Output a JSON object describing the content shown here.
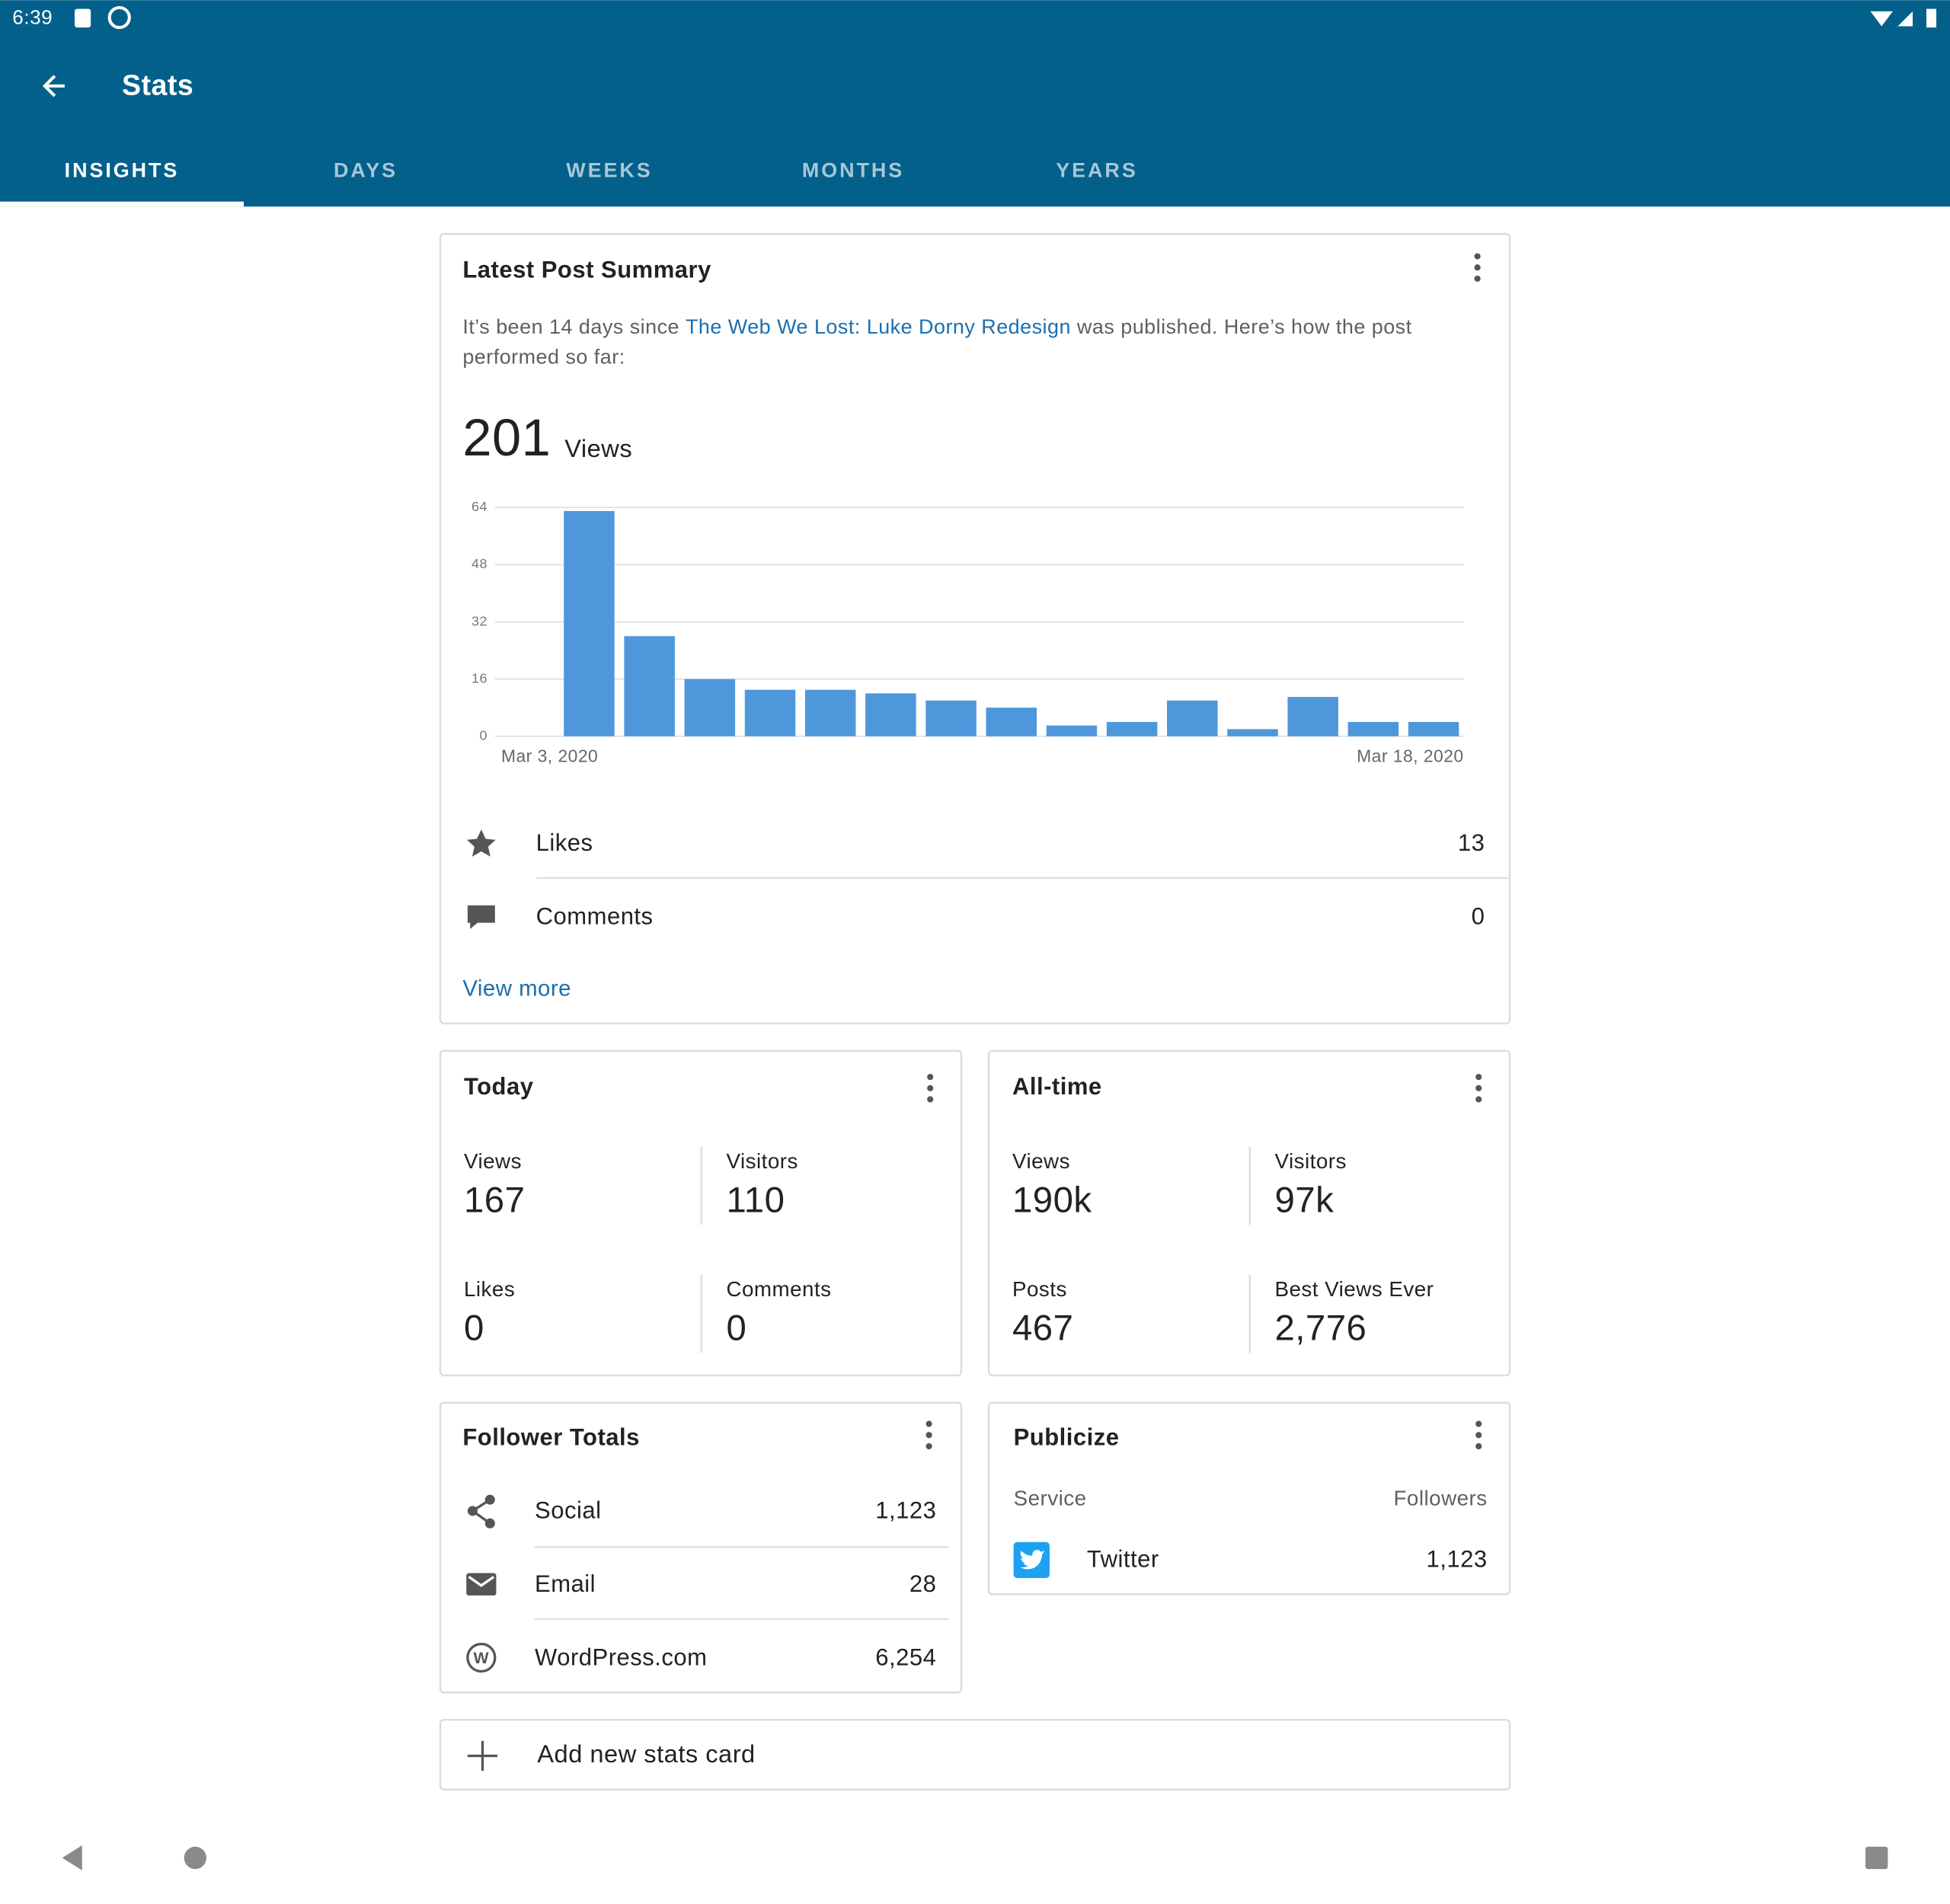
{
  "status_bar": {
    "time": "6:39"
  },
  "app_bar": {
    "title": "Stats"
  },
  "tabs": [
    "INSIGHTS",
    "DAYS",
    "WEEKS",
    "MONTHS",
    "YEARS"
  ],
  "latest_post": {
    "title": "Latest Post Summary",
    "text_before": "It’s been 14 days since ",
    "link": "The Web We Lost: Luke Dorny Redesign",
    "text_after": " was published. Here’s how the post",
    "text_line2": "performed so far:",
    "views": "201",
    "views_label": "Views",
    "rows": [
      {
        "label": "Likes",
        "value": "13"
      },
      {
        "label": "Comments",
        "value": "0"
      }
    ],
    "view_more": "View more"
  },
  "chart_data": {
    "type": "bar",
    "categories": [
      "Mar 3, 2020",
      null,
      null,
      null,
      null,
      null,
      null,
      null,
      null,
      null,
      null,
      null,
      null,
      null,
      null,
      "Mar 18, 2020"
    ],
    "values": [
      0,
      63,
      28,
      16,
      13,
      13,
      12,
      10,
      8,
      3,
      4,
      10,
      2,
      11,
      4,
      4
    ],
    "color": "#4f97db",
    "ylim": [
      0,
      64
    ],
    "yticks": [
      0,
      16,
      32,
      48,
      64
    ],
    "grid": true
  },
  "today": {
    "title": "Today",
    "stats": [
      {
        "label": "Views",
        "value": "167"
      },
      {
        "label": "Visitors",
        "value": "110"
      },
      {
        "label": "Likes",
        "value": "0"
      },
      {
        "label": "Comments",
        "value": "0"
      }
    ]
  },
  "all_time": {
    "title": "All-time",
    "stats": [
      {
        "label": "Views",
        "value": "190k"
      },
      {
        "label": "Visitors",
        "value": "97k"
      },
      {
        "label": "Posts",
        "value": "467"
      },
      {
        "label": "Best Views Ever",
        "value": "2,776"
      }
    ]
  },
  "follower_totals": {
    "title": "Follower Totals",
    "rows": [
      {
        "label": "Social",
        "value": "1,123"
      },
      {
        "label": "Email",
        "value": "28"
      },
      {
        "label": "WordPress.com",
        "value": "6,254"
      }
    ]
  },
  "publicize": {
    "title": "Publicize",
    "header_service": "Service",
    "header_followers": "Followers",
    "rows": [
      {
        "label": "Twitter",
        "value": "1,123"
      }
    ]
  },
  "add_card": "Add new stats card"
}
